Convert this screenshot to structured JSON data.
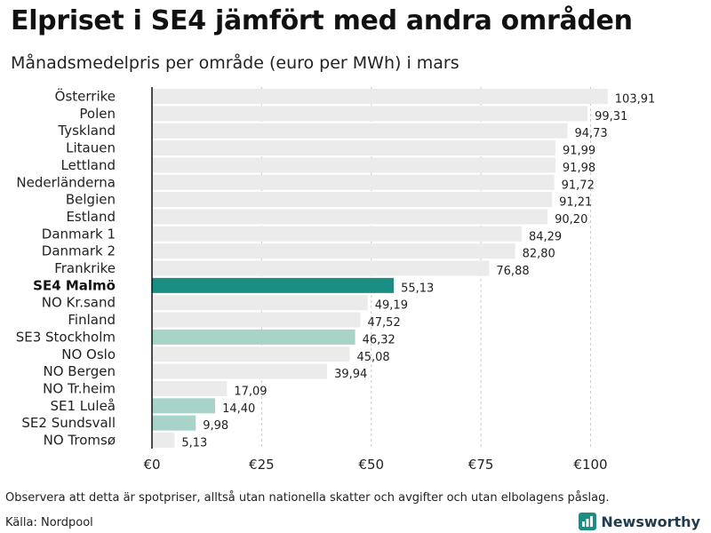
{
  "chart_data": {
    "type": "bar",
    "orientation": "horizontal",
    "title": "Elpriset i SE4 jämfört med andra områden",
    "subtitle": "Månadsmedelpris per område (euro per MWh) i mars",
    "xlim": [
      0,
      105
    ],
    "xticks": [
      0,
      25,
      50,
      75,
      100
    ],
    "xtick_labels": [
      "€0",
      "€25",
      "€50",
      "€75",
      "€100"
    ],
    "grid": true,
    "categories": [
      "Österrike",
      "Polen",
      "Tyskland",
      "Litauen",
      "Lettland",
      "Nederländerna",
      "Belgien",
      "Estland",
      "Danmark  1",
      "Danmark  2",
      "Frankrike",
      "SE4 Malmö",
      "NO Kr.sand",
      "Finland",
      "SE3  Stockholm",
      "NO Oslo",
      "NO Bergen",
      "NO Tr.heim",
      "SE1  Luleå",
      "SE2  Sundsvall",
      "NO Tromsø"
    ],
    "values": [
      103.91,
      99.31,
      94.73,
      91.99,
      91.98,
      91.72,
      91.21,
      90.2,
      84.29,
      82.8,
      76.88,
      55.13,
      49.19,
      47.52,
      46.32,
      45.08,
      39.94,
      17.09,
      14.4,
      9.98,
      5.13
    ],
    "value_labels": [
      "103,91",
      "99,31",
      "94,73",
      "91,99",
      "91,98",
      "91,72",
      "91,21",
      "90,20",
      "84,29",
      "82,80",
      "76,88",
      "55,13",
      "49,19",
      "47,52",
      "46,32",
      "45,08",
      "39,94",
      "17,09",
      "14,40",
      "9,98",
      "5,13"
    ],
    "highlight": [
      "normal",
      "normal",
      "normal",
      "normal",
      "normal",
      "normal",
      "normal",
      "normal",
      "normal",
      "normal",
      "normal",
      "main",
      "normal",
      "normal",
      "se",
      "normal",
      "normal",
      "normal",
      "se",
      "se",
      "normal"
    ]
  },
  "colors": {
    "bar_default": "#ebebeb",
    "bar_main": "#1a8e83",
    "bar_se": "#a8d3c9",
    "grid": "#cccccc",
    "axis": "#111111",
    "brand": "#1a8e83"
  },
  "footer": {
    "note": "Observera att detta är spotpriser, alltså utan nationella skatter och avgifter och utan elbolagens påslag.",
    "source": "Källa: Nordpool",
    "brand_name": "Newsworthy",
    "brand_icon": "newsworthy-logo-icon"
  }
}
